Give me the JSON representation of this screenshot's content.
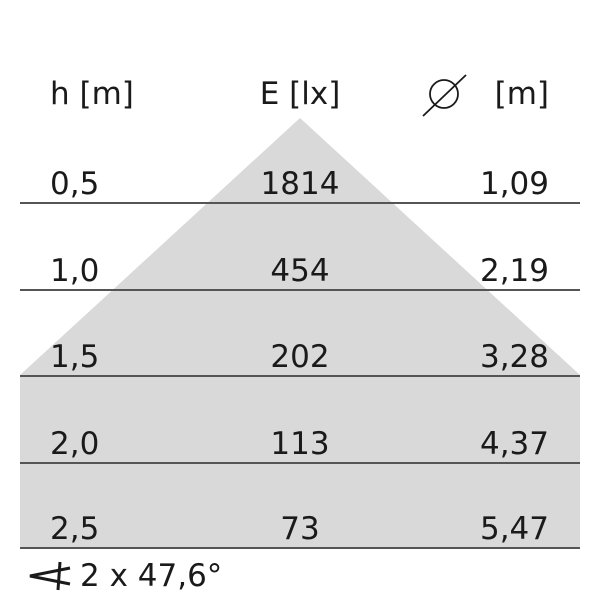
{
  "headers": {
    "height": "h [m]",
    "illuminance": "E [lx]",
    "diameter_unit": "[m]",
    "diameter_icon": "diameter-icon"
  },
  "rows": [
    {
      "h": "0,5",
      "E": "1814",
      "d": "1,09"
    },
    {
      "h": "1,0",
      "E": "454",
      "d": "2,19"
    },
    {
      "h": "1,5",
      "E": "202",
      "d": "3,28"
    },
    {
      "h": "2,0",
      "E": "113",
      "d": "4,37"
    },
    {
      "h": "2,5",
      "E": "73",
      "d": "5,47"
    }
  ],
  "beam_angle": {
    "icon": "angle-icon",
    "text": "2 x 47,6°"
  },
  "colors": {
    "cone_fill": "#d9d9d9",
    "line": "#555555",
    "text": "#1a1a1a"
  }
}
